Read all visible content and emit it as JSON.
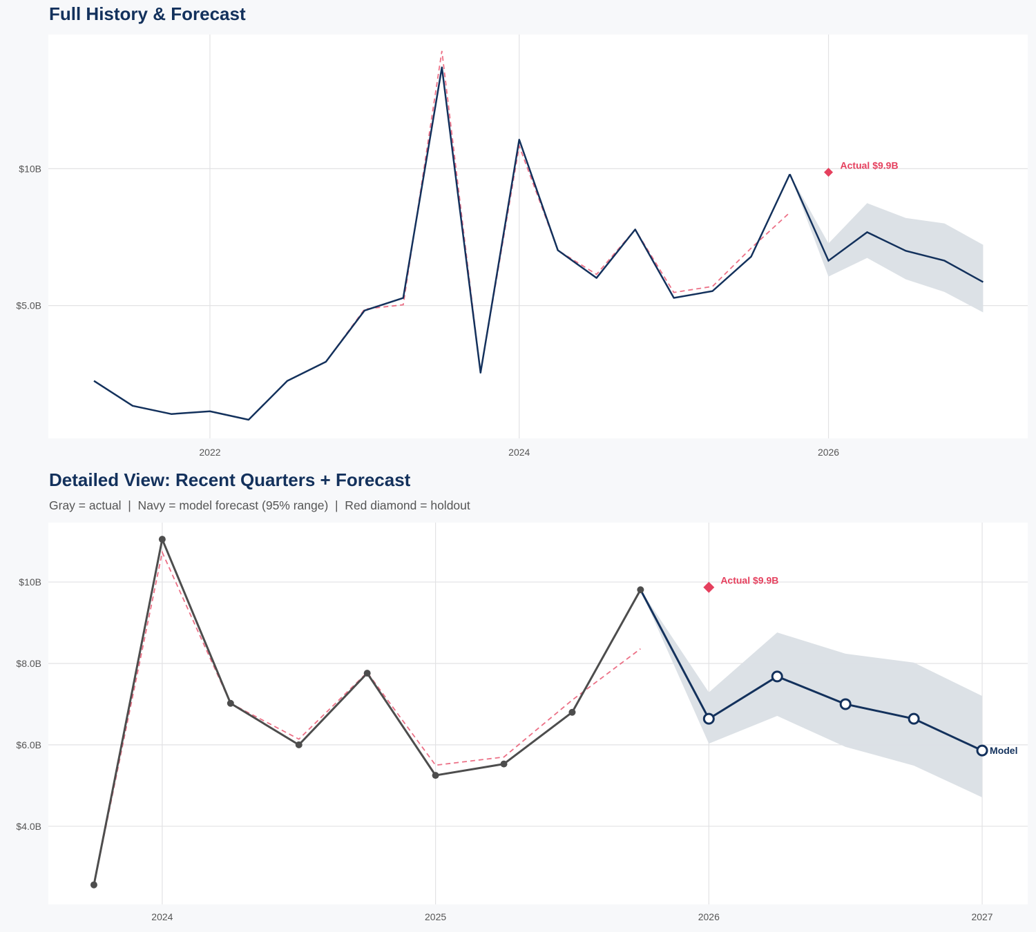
{
  "colors": {
    "navy": "#13315c",
    "gray": "#4d4d4d",
    "red": "#e5405e",
    "band": "#dadfe5",
    "grid": "#e2e2e4"
  },
  "chart_data": [
    {
      "type": "line",
      "title": "Full History & Forecast",
      "subtitle": "",
      "xlim": [
        "2020-12-15",
        "2027-04-15"
      ],
      "ylim": [
        0.15,
        14.9
      ],
      "grid": true,
      "x_ticks": [
        {
          "date": "2022-01-01",
          "label": "2022"
        },
        {
          "date": "2024-01-01",
          "label": "2024"
        },
        {
          "date": "2026-01-01",
          "label": "2026"
        }
      ],
      "y_ticks": [
        {
          "value": 5,
          "label": "$5.0B"
        },
        {
          "value": 10,
          "label": "$10B"
        }
      ],
      "show_markers": false,
      "actual_color": "navy",
      "actual": {
        "x": [
          "2021-04-01",
          "2021-07-01",
          "2021-10-01",
          "2022-01-01",
          "2022-04-01",
          "2022-07-01",
          "2022-10-01",
          "2023-01-01",
          "2023-04-01",
          "2023-07-01",
          "2023-10-01",
          "2024-01-01",
          "2024-04-01",
          "2024-07-01",
          "2024-10-01",
          "2025-01-01",
          "2025-04-01",
          "2025-07-01",
          "2025-10-01"
        ],
        "y": [
          2.25,
          1.34,
          1.04,
          1.14,
          0.83,
          2.25,
          2.95,
          4.82,
          5.28,
          13.7,
          2.55,
          11.06,
          7.02,
          6.01,
          7.78,
          5.28,
          5.53,
          6.79,
          9.8
        ]
      },
      "fitted": {
        "x": [
          "2022-04-01",
          "2022-07-01",
          "2022-10-01",
          "2023-01-01",
          "2023-04-01",
          "2023-07-01",
          "2023-10-01",
          "2024-01-01",
          "2024-04-01",
          "2024-07-01",
          "2024-10-01",
          "2025-01-01",
          "2025-04-01",
          "2025-07-01",
          "2025-10-01"
        ],
        "y": [
          0.83,
          2.25,
          2.95,
          4.87,
          5.03,
          14.3,
          2.55,
          10.83,
          7.02,
          6.14,
          7.78,
          5.48,
          5.7,
          7.1,
          8.4
        ]
      },
      "forecast": {
        "x": [
          "2026-01-01",
          "2026-04-01",
          "2026-07-01",
          "2026-10-01",
          "2027-01-01"
        ],
        "y": [
          6.64,
          7.68,
          7.0,
          6.64,
          5.86
        ],
        "lower": [
          6.06,
          6.74,
          5.96,
          5.5,
          4.75
        ],
        "upper": [
          7.27,
          8.74,
          8.2,
          8.0,
          7.22
        ],
        "label": ""
      },
      "holdout": {
        "x": "2026-01-01",
        "y": 9.87,
        "label": "Actual $9.9B"
      }
    },
    {
      "type": "line",
      "title": "Detailed View: Recent Quarters + Forecast",
      "subtitle": "Gray = actual  |  Navy = model forecast (95% range)  |  Red diamond = holdout",
      "xlim": [
        "2023-08-01",
        "2027-03-01"
      ],
      "ylim": [
        2.08,
        11.46
      ],
      "grid": true,
      "x_ticks": [
        {
          "date": "2024-01-01",
          "label": "2024"
        },
        {
          "date": "2025-01-01",
          "label": "2025"
        },
        {
          "date": "2026-01-01",
          "label": "2026"
        },
        {
          "date": "2027-01-01",
          "label": "2027"
        }
      ],
      "y_ticks": [
        {
          "value": 4,
          "label": "$4.0B"
        },
        {
          "value": 6,
          "label": "$6.0B"
        },
        {
          "value": 8,
          "label": "$8.0B"
        },
        {
          "value": 10,
          "label": "$10B"
        }
      ],
      "show_markers": true,
      "actual_color": "gray",
      "actual": {
        "x": [
          "2023-10-01",
          "2024-01-01",
          "2024-04-01",
          "2024-07-01",
          "2024-10-01",
          "2025-01-01",
          "2025-04-01",
          "2025-07-01",
          "2025-10-01"
        ],
        "y": [
          2.56,
          11.05,
          7.02,
          6.0,
          7.76,
          5.25,
          5.53,
          6.8,
          9.81
        ]
      },
      "fitted": {
        "x": [
          "2023-10-01",
          "2024-01-01",
          "2024-04-01",
          "2024-07-01",
          "2024-10-01",
          "2025-01-01",
          "2025-04-01",
          "2025-07-01",
          "2025-10-01"
        ],
        "y": [
          2.55,
          10.73,
          7.02,
          6.14,
          7.78,
          5.5,
          5.7,
          7.1,
          8.36
        ]
      },
      "forecast": {
        "x": [
          "2026-01-01",
          "2026-04-01",
          "2026-07-01",
          "2026-10-01",
          "2027-01-01"
        ],
        "y": [
          6.64,
          7.68,
          7.0,
          6.64,
          5.86
        ],
        "lower": [
          6.03,
          6.71,
          5.95,
          5.49,
          4.71
        ],
        "upper": [
          7.29,
          8.76,
          8.24,
          8.02,
          7.2
        ],
        "label": "Model"
      },
      "holdout": {
        "x": "2026-01-01",
        "y": 9.87,
        "label": "Actual $9.9B"
      }
    }
  ]
}
